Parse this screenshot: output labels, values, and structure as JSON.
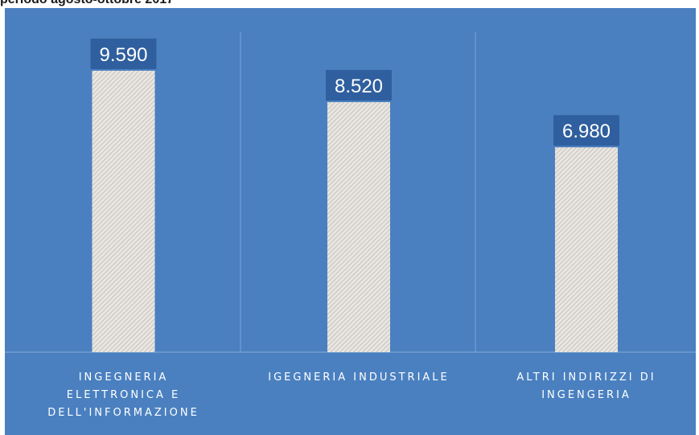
{
  "caption": "periodo agosto-ottobre 2017",
  "colors": {
    "panel": "#4a80c0",
    "divider": "#7aa3d3",
    "label_box": "#2f5f9e",
    "bar_fill": "#e9e6e2",
    "bar_hatch": "#b7b3ae"
  },
  "chart_data": {
    "type": "bar",
    "categories": [
      "INGEGNERIA ELETTRONICA E DELL'INFORMAZIONE",
      "IGEGNERIA INDUSTRIALE",
      "ALTRI INDIRIZZI DI INGENGERIA"
    ],
    "category_label_lines": [
      [
        "INGEGNERIA",
        "ELETTRONICA E",
        "DELL'INFORMAZIONE"
      ],
      [
        "IGEGNERIA INDUSTRIALE"
      ],
      [
        "ALTRI INDIRIZZI DI",
        "INGENGERIA"
      ]
    ],
    "values": [
      9590,
      8520,
      6980
    ],
    "data_labels": [
      "9.590",
      "8.520",
      "6.980"
    ],
    "ylim": [
      0,
      12000
    ],
    "grid": false,
    "legend": "none",
    "title": "",
    "xlabel": "",
    "ylabel": ""
  }
}
